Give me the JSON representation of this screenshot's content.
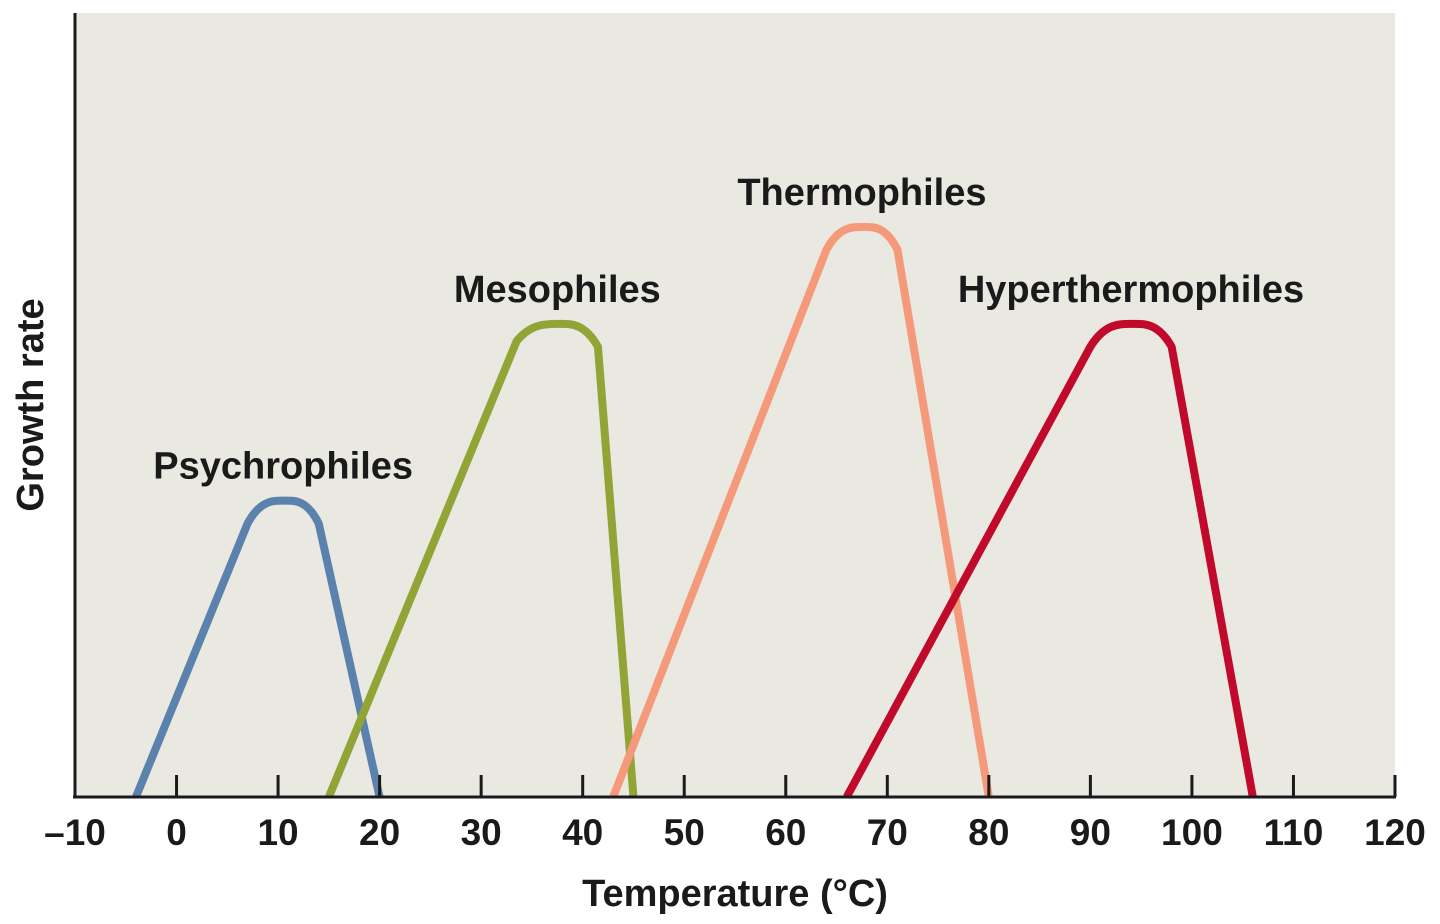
{
  "chart_data": {
    "type": "line",
    "xlabel": "Temperature (°C)",
    "ylabel": "Growth rate",
    "xlim": [
      -10,
      120
    ],
    "ylim": [
      0,
      10
    ],
    "x_ticks": [
      -10,
      0,
      10,
      20,
      30,
      40,
      50,
      60,
      70,
      80,
      90,
      100,
      110,
      120
    ],
    "x_tick_labels": [
      "–10",
      "0",
      "10",
      "20",
      "30",
      "40",
      "50",
      "60",
      "70",
      "80",
      "90",
      "100",
      "110",
      "120"
    ],
    "background_color": "#e9e8e1",
    "grid": false,
    "series": [
      {
        "name": "Psychrophiles",
        "color": "#5a82ad",
        "x": [
          -4,
          7,
          10.5,
          14,
          20
        ],
        "y": [
          0,
          4.8,
          5.2,
          4.8,
          0
        ]
      },
      {
        "name": "Mesophiles",
        "color": "#93a436",
        "x": [
          15,
          33.5,
          37.5,
          41.5,
          45
        ],
        "y": [
          0,
          8.0,
          8.3,
          7.9,
          0
        ]
      },
      {
        "name": "Thermophiles",
        "color": "#f49a7a",
        "x": [
          43,
          64,
          67.5,
          71,
          80
        ],
        "y": [
          0,
          9.6,
          10.0,
          9.6,
          0
        ]
      },
      {
        "name": "Hyperthermophiles",
        "color": "#c0092b",
        "x": [
          66,
          90,
          94,
          98,
          106
        ],
        "y": [
          0,
          7.9,
          8.3,
          7.9,
          0
        ]
      }
    ]
  }
}
